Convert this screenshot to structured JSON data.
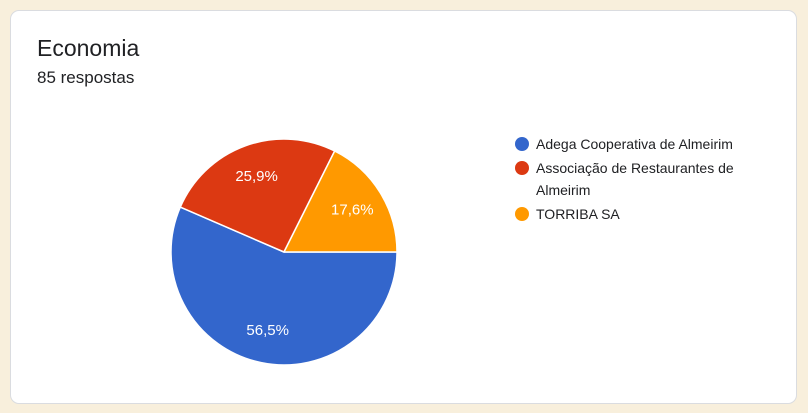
{
  "theme": {
    "page_background": "#F8EFDC",
    "card_background": "#FFFFFF",
    "card_border": "#DADCE0",
    "text_color": "#202124"
  },
  "card": {
    "title": "Economia",
    "responses_label": "85 respostas"
  },
  "chart_data": {
    "type": "pie",
    "title": "Economia",
    "subtitle": "85 respostas",
    "legend_position": "right",
    "start_angle_deg": 0,
    "direction": "clockwise",
    "slice_label_color": "#FFFFFF",
    "slice_separator_color": "#FFFFFF",
    "slices": [
      {
        "label": "Adega Cooperativa de Almeirim",
        "value": 56.5,
        "display": "56,5%",
        "color": "#3366CC"
      },
      {
        "label": "Associação de Restaurantes de Almeirim",
        "value": 25.9,
        "display": "25,9%",
        "color": "#DC3912"
      },
      {
        "label": "TORRIBA SA",
        "value": 17.6,
        "display": "17,6%",
        "color": "#FF9900"
      }
    ]
  }
}
